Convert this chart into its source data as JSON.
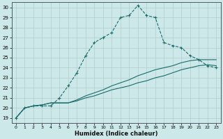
{
  "xlabel": "Humidex (Indice chaleur)",
  "bg_color": "#cde8e8",
  "grid_color": "#b0cccc",
  "line_color": "#1a6b6b",
  "xlim": [
    -0.5,
    23.5
  ],
  "ylim": [
    18.5,
    30.5
  ],
  "xticks": [
    0,
    1,
    2,
    3,
    4,
    5,
    6,
    7,
    8,
    9,
    10,
    11,
    12,
    13,
    14,
    15,
    16,
    17,
    18,
    19,
    20,
    21,
    22,
    23
  ],
  "yticks": [
    19,
    20,
    21,
    22,
    23,
    24,
    25,
    26,
    27,
    28,
    29,
    30
  ],
  "line1_x": [
    0,
    1,
    2,
    3,
    4,
    5,
    6,
    7,
    8,
    9,
    10,
    11,
    12,
    13,
    14,
    15,
    16,
    17,
    18,
    19,
    20,
    21,
    22,
    23
  ],
  "line1_y": [
    19.0,
    20.0,
    20.2,
    20.2,
    20.2,
    21.0,
    22.2,
    23.5,
    25.2,
    26.5,
    27.0,
    27.5,
    29.0,
    29.2,
    30.2,
    29.2,
    29.0,
    26.5,
    26.2,
    26.0,
    25.2,
    24.8,
    24.2,
    24.0
  ],
  "line2_x": [
    0,
    1,
    2,
    3,
    4,
    5,
    6,
    7,
    8,
    9,
    10,
    11,
    12,
    13,
    14,
    15,
    16,
    17,
    18,
    19,
    20,
    21,
    22,
    23
  ],
  "line2_y": [
    19.0,
    20.0,
    20.2,
    20.3,
    20.5,
    20.5,
    20.5,
    20.7,
    21.0,
    21.2,
    21.5,
    21.8,
    22.0,
    22.2,
    22.5,
    22.7,
    23.0,
    23.2,
    23.5,
    23.8,
    24.0,
    24.2,
    24.3,
    24.2
  ],
  "line3_x": [
    0,
    1,
    2,
    3,
    4,
    5,
    6,
    7,
    8,
    9,
    10,
    11,
    12,
    13,
    14,
    15,
    16,
    17,
    18,
    19,
    20,
    21,
    22,
    23
  ],
  "line3_y": [
    19.0,
    20.0,
    20.2,
    20.3,
    20.5,
    20.5,
    20.5,
    20.8,
    21.2,
    21.5,
    21.8,
    22.2,
    22.5,
    22.8,
    23.2,
    23.5,
    23.8,
    24.0,
    24.2,
    24.5,
    24.7,
    24.8,
    24.8,
    24.8
  ]
}
